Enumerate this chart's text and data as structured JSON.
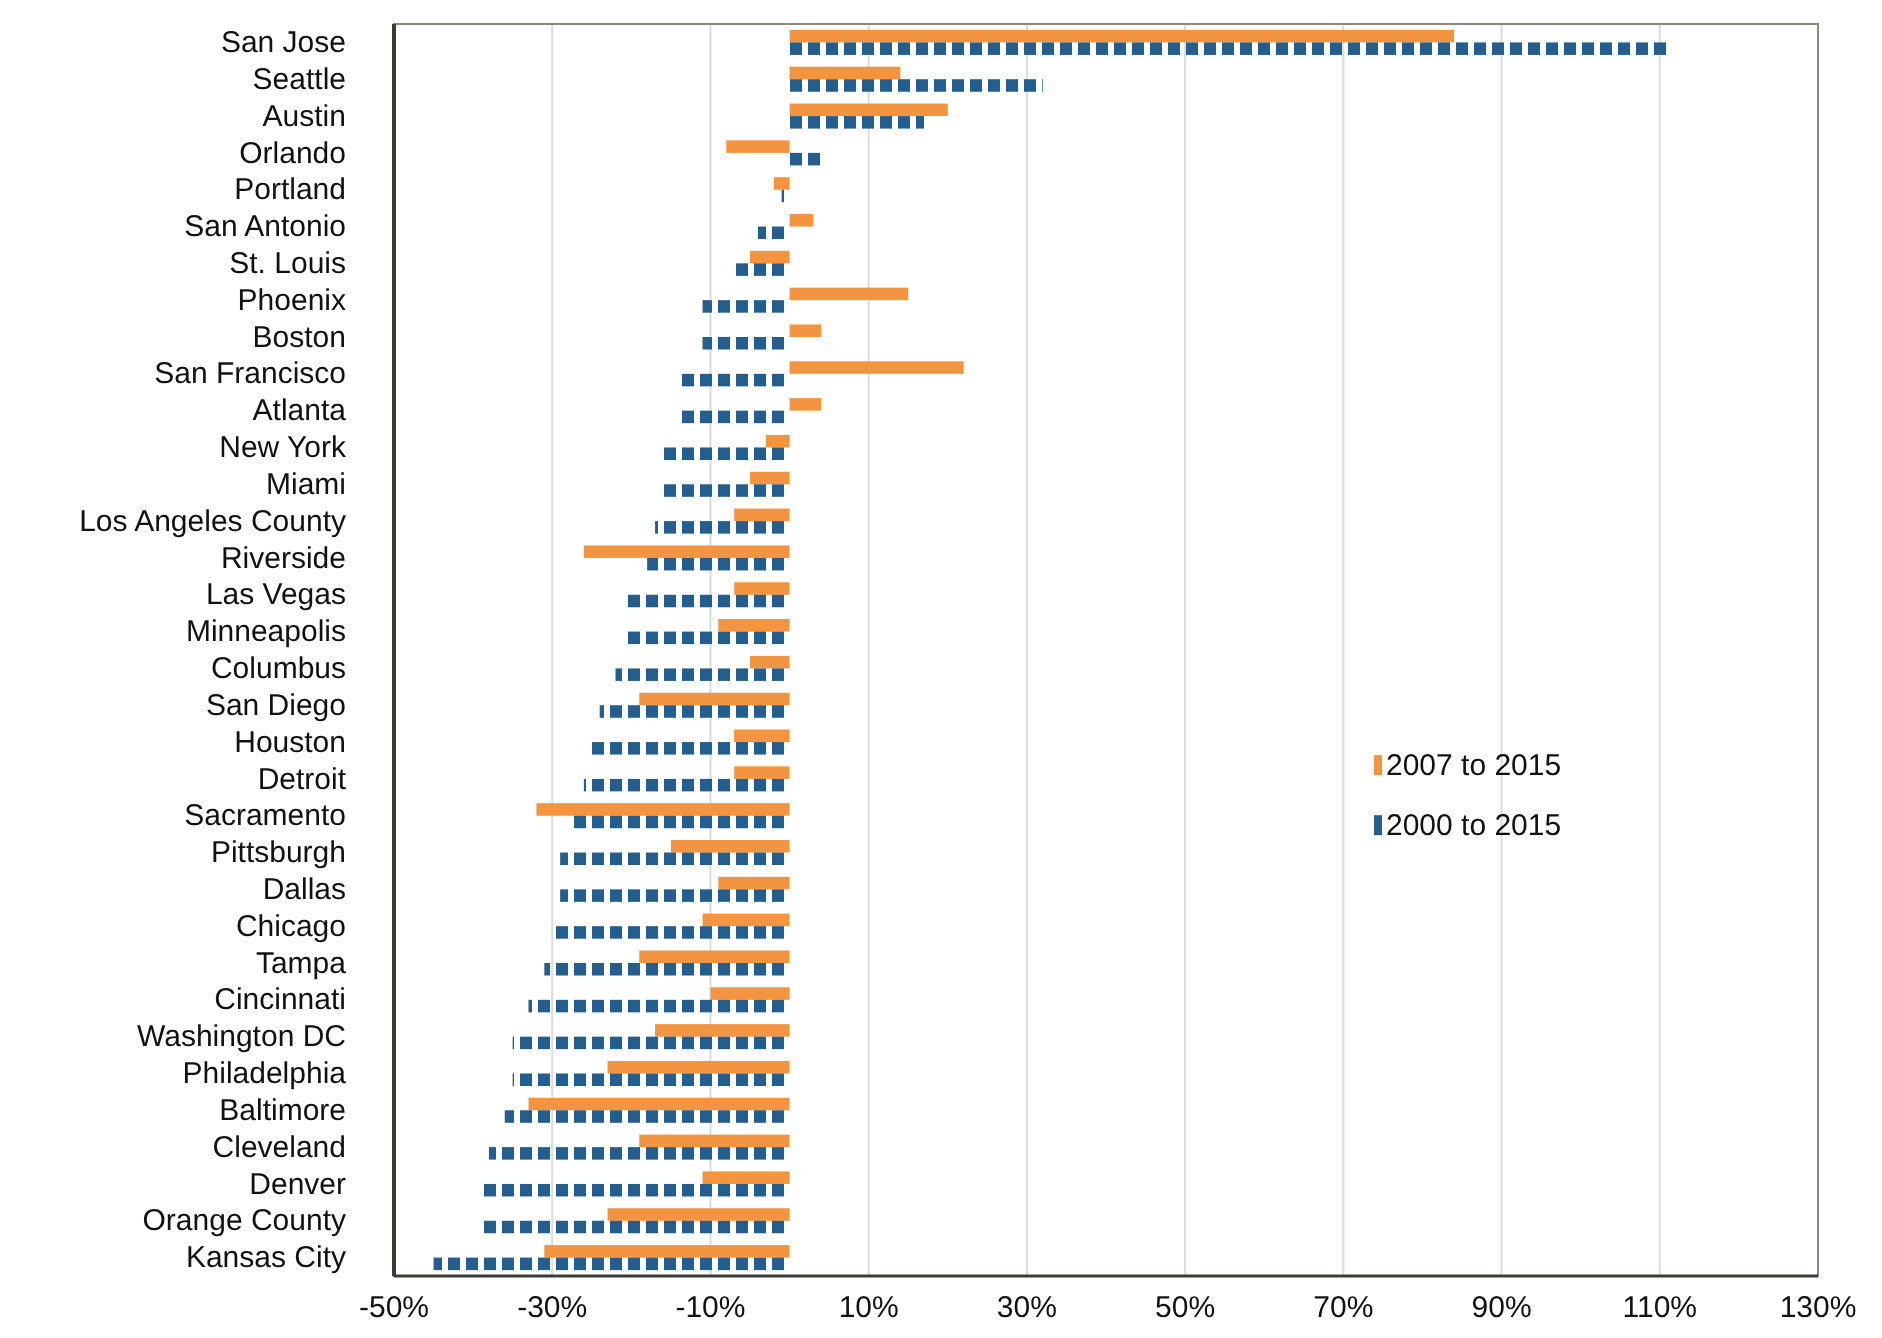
{
  "chart_data": {
    "type": "bar",
    "orientation": "horizontal",
    "categories": [
      "San Jose",
      "Seattle",
      "Austin",
      "Orlando",
      "Portland",
      "San Antonio",
      "St. Louis",
      "Phoenix",
      "Boston",
      "San Francisco",
      "Atlanta",
      "New York",
      "Miami",
      "Los Angeles County",
      "Riverside",
      "Las Vegas",
      "Minneapolis",
      "Columbus",
      "San Diego",
      "Houston",
      "Detroit",
      "Sacramento",
      "Pittsburgh",
      "Dallas",
      "Chicago",
      "Tampa",
      "Cincinnati",
      "Washington DC",
      "Philadelphia",
      "Baltimore",
      "Cleveland",
      "Denver",
      "Orange County",
      "Kansas City"
    ],
    "series": [
      {
        "name": "2007 to 2015",
        "color": "#f39441",
        "values": [
          84,
          14,
          20,
          -8,
          -2,
          3,
          -5,
          15,
          4,
          22,
          4,
          -3,
          -5,
          -7,
          -26,
          -7,
          -9,
          -5,
          -19,
          -7,
          -7,
          -32,
          -15,
          -9,
          -11,
          -19,
          -10,
          -17,
          -23,
          -33,
          -19,
          -11,
          -23,
          -31
        ]
      },
      {
        "name": "2000 to 2015",
        "color": "#255e8d",
        "values": [
          111,
          32,
          17,
          4,
          -1,
          -4,
          -7,
          -11,
          -11,
          -14,
          -14,
          -16,
          -16,
          -17,
          -18,
          -21,
          -21,
          -22,
          -24,
          -25,
          -26,
          -28,
          -29,
          -29,
          -30,
          -31,
          -33,
          -35,
          -35,
          -36,
          -38,
          -39,
          -39,
          -45
        ]
      }
    ],
    "xlim": [
      -50,
      130
    ],
    "xticks": [
      {
        "value": -50,
        "label": "-50%"
      },
      {
        "value": -30,
        "label": "-30%"
      },
      {
        "value": -10,
        "label": "-10%"
      },
      {
        "value": 10,
        "label": "10%"
      },
      {
        "value": 30,
        "label": "30%"
      },
      {
        "value": 50,
        "label": "50%"
      },
      {
        "value": 70,
        "label": "70%"
      },
      {
        "value": 90,
        "label": "90%"
      },
      {
        "value": 110,
        "label": "110%"
      },
      {
        "value": 130,
        "label": "130%"
      }
    ],
    "grid": "x",
    "legend": "right"
  }
}
